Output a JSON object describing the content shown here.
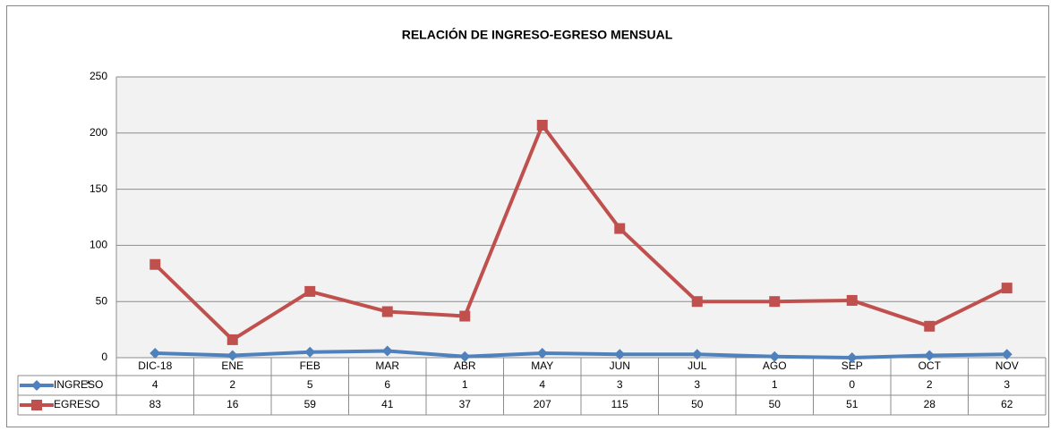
{
  "chart_data": {
    "type": "line",
    "title": "RELACIÓN DE INGRESO-EGRESO MENSUAL",
    "categories": [
      "DIC-18",
      "ENE",
      "FEB",
      "MAR",
      "ABR",
      "MAY",
      "JUN",
      "JUL",
      "AGO",
      "SEP",
      "OCT",
      "NOV"
    ],
    "series": [
      {
        "name": "INGRESO",
        "color": "#4f81bd",
        "marker": "diamond",
        "values": [
          4,
          2,
          5,
          6,
          1,
          4,
          3,
          3,
          1,
          0,
          2,
          3
        ]
      },
      {
        "name": "EGRESO",
        "color": "#c0504d",
        "marker": "square",
        "values": [
          83,
          16,
          59,
          41,
          37,
          207,
          115,
          50,
          50,
          51,
          28,
          62
        ]
      }
    ],
    "annotation": "*",
    "ylim": [
      0,
      250
    ],
    "yticks": [
      0,
      50,
      100,
      150,
      200,
      250
    ],
    "grid": true
  }
}
